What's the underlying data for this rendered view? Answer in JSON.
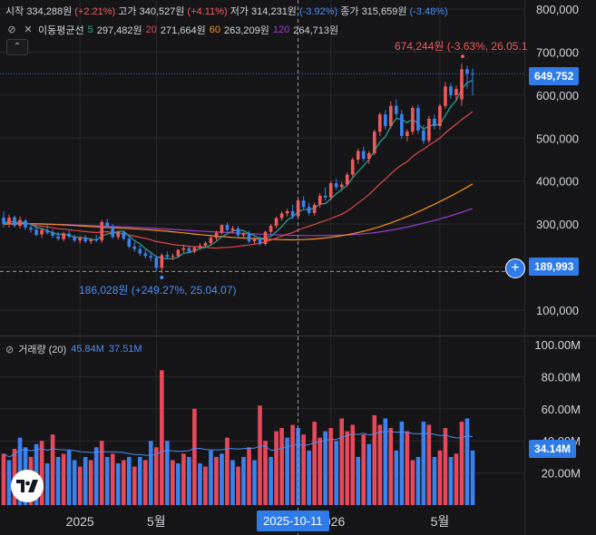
{
  "header": {
    "open_label": "시작",
    "open_value": "334,288원",
    "open_change": "(+2.21%)",
    "high_label": "고가",
    "high_value": "340,527원",
    "high_change": "(+4.11%)",
    "low_label": "저가",
    "low_value": "314,231원",
    "low_change": "(-3.92%)",
    "close_label": "종가",
    "close_value": "315,659원",
    "close_change": "(-3.48%)"
  },
  "ma_legend": {
    "title": "이동평균선",
    "items": [
      {
        "period": "5",
        "value": "297,482원",
        "color": "#26a69a"
      },
      {
        "period": "20",
        "value": "271,664원",
        "color": "#e04848"
      },
      {
        "period": "60",
        "value": "263,209원",
        "color": "#f59322"
      },
      {
        "period": "120",
        "value": "264,713원",
        "color": "#9a3fd1"
      }
    ],
    "collapse_icon": "chevron-up-icon"
  },
  "volume_legend": {
    "title": "거래량 (20)",
    "value1": "45.84M",
    "value2": "37.51M"
  },
  "annotations": {
    "high_label": "674,244원 (-3.63%, 26.05.1",
    "low_label": "186,028원 (+249.27%, 25.04.07)"
  },
  "price_tags": {
    "last_price": "649,752",
    "cursor_price": "189,993",
    "volume_last": "34.14M"
  },
  "crosshair_date": "2025-10-11",
  "colors": {
    "up": "#f05a5a",
    "down": "#3b82f0",
    "accent": "#2f7be8",
    "grid": "#2a2a2e",
    "background": "#161618"
  },
  "chart_data": {
    "type": "candlestick",
    "price_axis": {
      "ticks": [
        "800,000",
        "700,000",
        "600,000",
        "500,000",
        "400,000",
        "300,000",
        "200,000",
        "100,000"
      ],
      "ylim": [
        40000,
        820000
      ]
    },
    "volume_axis": {
      "ticks": [
        "100.00M",
        "80.00M",
        "60.00M",
        "40.00M",
        "20.00M"
      ],
      "ylim": [
        0,
        100000000
      ]
    },
    "x_ticks": [
      "2025",
      "5월",
      "2026",
      "5월"
    ],
    "candles": [
      {
        "o": 315000,
        "h": 330000,
        "l": 292000,
        "c": 300000
      },
      {
        "o": 300000,
        "h": 322000,
        "l": 292000,
        "c": 315000
      },
      {
        "o": 316000,
        "h": 320000,
        "l": 292000,
        "c": 296000
      },
      {
        "o": 296000,
        "h": 318000,
        "l": 290000,
        "c": 310000
      },
      {
        "o": 308000,
        "h": 312000,
        "l": 286000,
        "c": 292000
      },
      {
        "o": 292000,
        "h": 298000,
        "l": 280000,
        "c": 287000
      },
      {
        "o": 287000,
        "h": 295000,
        "l": 272000,
        "c": 275000
      },
      {
        "o": 276000,
        "h": 290000,
        "l": 268000,
        "c": 287000
      },
      {
        "o": 286000,
        "h": 300000,
        "l": 276000,
        "c": 280000
      },
      {
        "o": 280000,
        "h": 288000,
        "l": 268000,
        "c": 273000
      },
      {
        "o": 272000,
        "h": 282000,
        "l": 262000,
        "c": 266000
      },
      {
        "o": 265000,
        "h": 282000,
        "l": 260000,
        "c": 279000
      },
      {
        "o": 278000,
        "h": 286000,
        "l": 266000,
        "c": 271000
      },
      {
        "o": 270000,
        "h": 275000,
        "l": 258000,
        "c": 262000
      },
      {
        "o": 262000,
        "h": 272000,
        "l": 255000,
        "c": 268000
      },
      {
        "o": 268000,
        "h": 275000,
        "l": 256000,
        "c": 260000
      },
      {
        "o": 260000,
        "h": 268000,
        "l": 254000,
        "c": 264000
      },
      {
        "o": 264000,
        "h": 275000,
        "l": 258000,
        "c": 262000
      },
      {
        "o": 262000,
        "h": 310000,
        "l": 256000,
        "c": 305000
      },
      {
        "o": 304000,
        "h": 312000,
        "l": 290000,
        "c": 295000
      },
      {
        "o": 295000,
        "h": 300000,
        "l": 266000,
        "c": 270000
      },
      {
        "o": 270000,
        "h": 285000,
        "l": 264000,
        "c": 282000
      },
      {
        "o": 281000,
        "h": 284000,
        "l": 262000,
        "c": 266000
      },
      {
        "o": 266000,
        "h": 272000,
        "l": 244000,
        "c": 248000
      },
      {
        "o": 248000,
        "h": 258000,
        "l": 236000,
        "c": 242000
      },
      {
        "o": 242000,
        "h": 250000,
        "l": 226000,
        "c": 232000
      },
      {
        "o": 232000,
        "h": 240000,
        "l": 220000,
        "c": 226000
      },
      {
        "o": 226000,
        "h": 236000,
        "l": 214000,
        "c": 222000
      },
      {
        "o": 222000,
        "h": 228000,
        "l": 190000,
        "c": 198000
      },
      {
        "o": 198000,
        "h": 232000,
        "l": 186000,
        "c": 228000
      },
      {
        "o": 228000,
        "h": 236000,
        "l": 218000,
        "c": 224000
      },
      {
        "o": 224000,
        "h": 232000,
        "l": 216000,
        "c": 226000
      },
      {
        "o": 226000,
        "h": 242000,
        "l": 222000,
        "c": 240000
      },
      {
        "o": 240000,
        "h": 252000,
        "l": 234000,
        "c": 244000
      },
      {
        "o": 244000,
        "h": 250000,
        "l": 232000,
        "c": 236000
      },
      {
        "o": 236000,
        "h": 248000,
        "l": 232000,
        "c": 245000
      },
      {
        "o": 245000,
        "h": 256000,
        "l": 240000,
        "c": 250000
      },
      {
        "o": 250000,
        "h": 260000,
        "l": 244000,
        "c": 256000
      },
      {
        "o": 256000,
        "h": 272000,
        "l": 250000,
        "c": 268000
      },
      {
        "o": 268000,
        "h": 285000,
        "l": 262000,
        "c": 280000
      },
      {
        "o": 280000,
        "h": 300000,
        "l": 276000,
        "c": 298000
      },
      {
        "o": 298000,
        "h": 304000,
        "l": 282000,
        "c": 286000
      },
      {
        "o": 286000,
        "h": 296000,
        "l": 278000,
        "c": 290000
      },
      {
        "o": 290000,
        "h": 295000,
        "l": 270000,
        "c": 274000
      },
      {
        "o": 274000,
        "h": 282000,
        "l": 268000,
        "c": 278000
      },
      {
        "o": 278000,
        "h": 284000,
        "l": 256000,
        "c": 260000
      },
      {
        "o": 260000,
        "h": 270000,
        "l": 254000,
        "c": 266000
      },
      {
        "o": 266000,
        "h": 272000,
        "l": 250000,
        "c": 254000
      },
      {
        "o": 254000,
        "h": 285000,
        "l": 250000,
        "c": 282000
      },
      {
        "o": 282000,
        "h": 300000,
        "l": 276000,
        "c": 296000
      },
      {
        "o": 296000,
        "h": 318000,
        "l": 290000,
        "c": 314000
      },
      {
        "o": 314000,
        "h": 330000,
        "l": 308000,
        "c": 325000
      },
      {
        "o": 325000,
        "h": 336000,
        "l": 318000,
        "c": 330000
      },
      {
        "o": 330000,
        "h": 345000,
        "l": 312000,
        "c": 318000
      },
      {
        "o": 318000,
        "h": 360000,
        "l": 314000,
        "c": 355000
      },
      {
        "o": 355000,
        "h": 365000,
        "l": 335000,
        "c": 340000
      },
      {
        "o": 340000,
        "h": 350000,
        "l": 320000,
        "c": 326000
      },
      {
        "o": 326000,
        "h": 350000,
        "l": 320000,
        "c": 345000
      },
      {
        "o": 345000,
        "h": 372000,
        "l": 338000,
        "c": 366000
      },
      {
        "o": 366000,
        "h": 385000,
        "l": 355000,
        "c": 362000
      },
      {
        "o": 362000,
        "h": 400000,
        "l": 355000,
        "c": 395000
      },
      {
        "o": 395000,
        "h": 405000,
        "l": 380000,
        "c": 386000
      },
      {
        "o": 386000,
        "h": 398000,
        "l": 378000,
        "c": 392000
      },
      {
        "o": 392000,
        "h": 420000,
        "l": 388000,
        "c": 415000
      },
      {
        "o": 415000,
        "h": 455000,
        "l": 410000,
        "c": 450000
      },
      {
        "o": 450000,
        "h": 475000,
        "l": 440000,
        "c": 470000
      },
      {
        "o": 470000,
        "h": 480000,
        "l": 446000,
        "c": 452000
      },
      {
        "o": 452000,
        "h": 470000,
        "l": 440000,
        "c": 465000
      },
      {
        "o": 465000,
        "h": 520000,
        "l": 460000,
        "c": 515000
      },
      {
        "o": 515000,
        "h": 560000,
        "l": 505000,
        "c": 555000
      },
      {
        "o": 555000,
        "h": 565000,
        "l": 520000,
        "c": 528000
      },
      {
        "o": 528000,
        "h": 585000,
        "l": 522000,
        "c": 575000
      },
      {
        "o": 575000,
        "h": 590000,
        "l": 548000,
        "c": 556000
      },
      {
        "o": 556000,
        "h": 565000,
        "l": 498000,
        "c": 505000
      },
      {
        "o": 505000,
        "h": 520000,
        "l": 492000,
        "c": 515000
      },
      {
        "o": 515000,
        "h": 575000,
        "l": 508000,
        "c": 570000
      },
      {
        "o": 570000,
        "h": 578000,
        "l": 510000,
        "c": 518000
      },
      {
        "o": 518000,
        "h": 530000,
        "l": 486000,
        "c": 494000
      },
      {
        "o": 494000,
        "h": 552000,
        "l": 488000,
        "c": 545000
      },
      {
        "o": 545000,
        "h": 555000,
        "l": 520000,
        "c": 528000
      },
      {
        "o": 528000,
        "h": 580000,
        "l": 520000,
        "c": 575000
      },
      {
        "o": 575000,
        "h": 630000,
        "l": 568000,
        "c": 620000
      },
      {
        "o": 620000,
        "h": 628000,
        "l": 592000,
        "c": 600000
      },
      {
        "o": 600000,
        "h": 622000,
        "l": 588000,
        "c": 614000
      },
      {
        "o": 590000,
        "h": 674244,
        "l": 575000,
        "c": 660000
      },
      {
        "o": 660000,
        "h": 668000,
        "l": 615000,
        "c": 650000
      },
      {
        "o": 650000,
        "h": 662000,
        "l": 600000,
        "c": 649752
      }
    ],
    "volumes": [
      32,
      28,
      35,
      42,
      36,
      30,
      38,
      40,
      26,
      44,
      30,
      32,
      34,
      28,
      24,
      30,
      28,
      36,
      40,
      30,
      32,
      26,
      28,
      30,
      24,
      30,
      28,
      40,
      36,
      84,
      40,
      28,
      26,
      32,
      30,
      60,
      26,
      24,
      34,
      30,
      32,
      42,
      28,
      24,
      30,
      36,
      28,
      62,
      40,
      30,
      46,
      48,
      42,
      50,
      48,
      44,
      34,
      52,
      42,
      46,
      48,
      40,
      54,
      46,
      50,
      30,
      44,
      38,
      56,
      50,
      54,
      48,
      34,
      52,
      46,
      28,
      30,
      52,
      50,
      30,
      34,
      48,
      30,
      32,
      52,
      54,
      34
    ],
    "volume_up": [
      true,
      false,
      true,
      false,
      false,
      true,
      false,
      true,
      false,
      true,
      false,
      true,
      false,
      false,
      true,
      false,
      true,
      false,
      true,
      false,
      true,
      false,
      true,
      false,
      true,
      false,
      true,
      false,
      true,
      true,
      false,
      true,
      false,
      true,
      false,
      true,
      false,
      true,
      false,
      true,
      false,
      true,
      false,
      true,
      false,
      true,
      false,
      true,
      true,
      false,
      true,
      true,
      false,
      true,
      false,
      true,
      false,
      true,
      true,
      false,
      true,
      false,
      true,
      true,
      true,
      false,
      true,
      false,
      true,
      true,
      false,
      true,
      false,
      false,
      true,
      true,
      false,
      false,
      true,
      false,
      true,
      true,
      false,
      true,
      true,
      false,
      false
    ],
    "ma_series": {
      "ma5": {
        "color": "#26a69a"
      },
      "ma20": {
        "color": "#e04848"
      },
      "ma60": {
        "color": "#f59322"
      },
      "ma120": {
        "color": "#9a3fd1"
      }
    },
    "volume_ma": {
      "color": "#4b8df8"
    }
  }
}
